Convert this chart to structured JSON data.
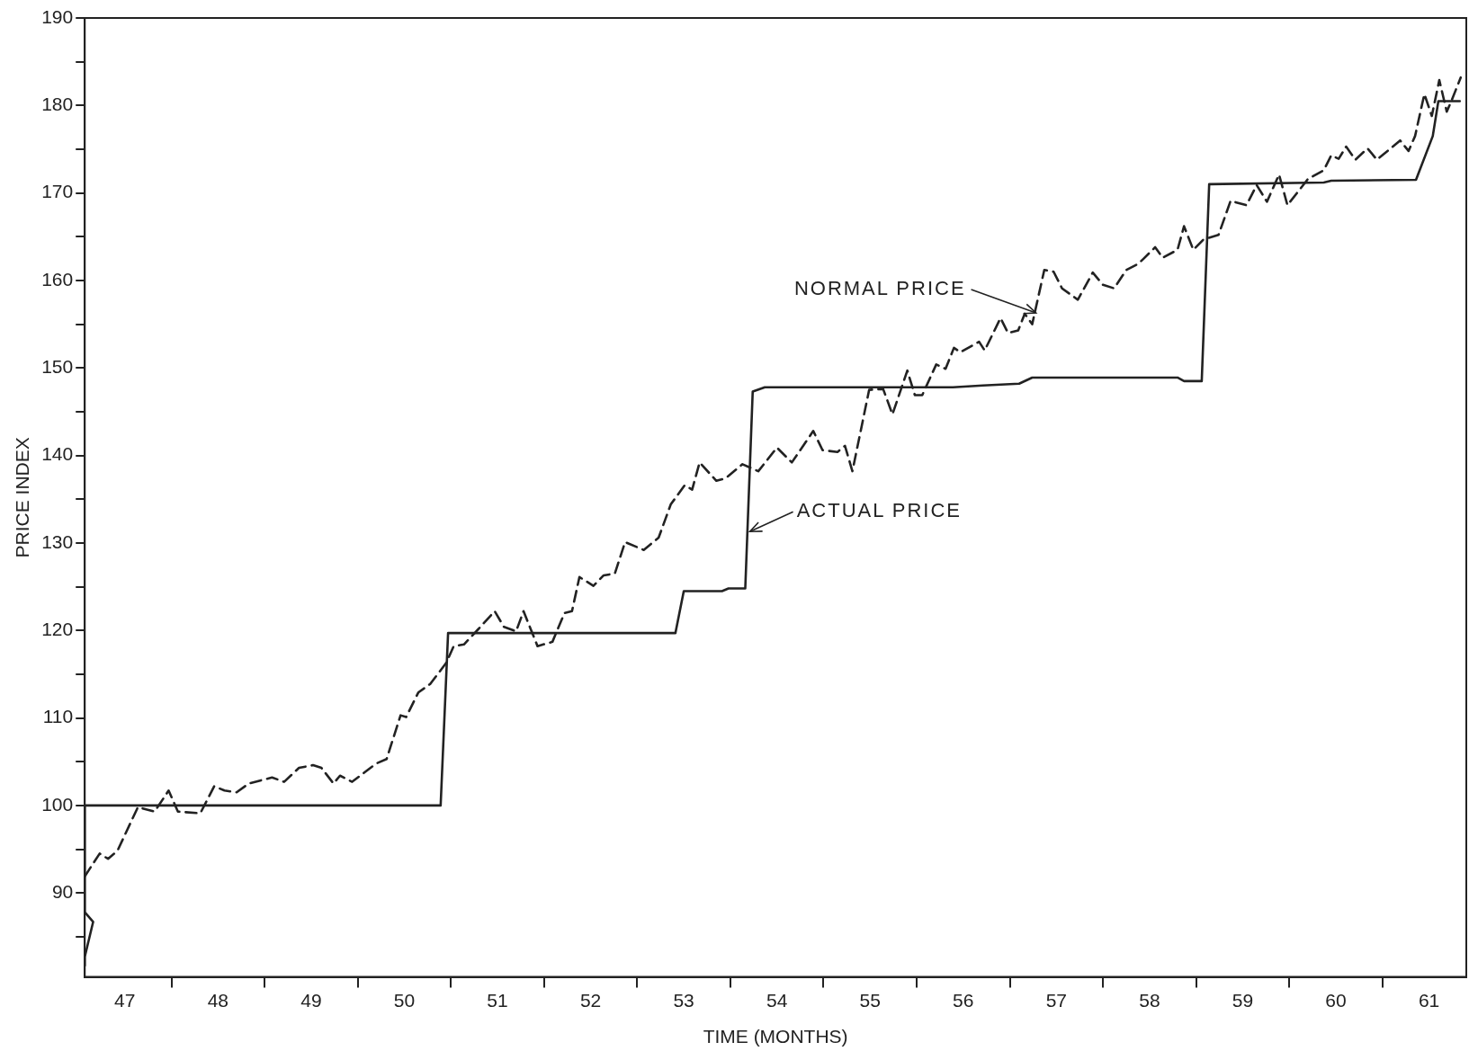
{
  "chart_data": {
    "type": "line",
    "xlabel": "TIME (MONTHS)",
    "ylabel": "PRICE INDEX",
    "xlim": [
      47.07,
      61.9
    ],
    "ylim": [
      80.4,
      190
    ],
    "xticks": [
      {
        "value": 47.5,
        "label": "47"
      },
      {
        "value": 48,
        "label": null
      },
      {
        "value": 48.5,
        "label": "48"
      },
      {
        "value": 49,
        "label": null
      },
      {
        "value": 49.5,
        "label": "49"
      },
      {
        "value": 50,
        "label": null
      },
      {
        "value": 50.5,
        "label": "50"
      },
      {
        "value": 51,
        "label": null
      },
      {
        "value": 51.5,
        "label": "51"
      },
      {
        "value": 52,
        "label": null
      },
      {
        "value": 52.5,
        "label": "52"
      },
      {
        "value": 53,
        "label": null
      },
      {
        "value": 53.5,
        "label": "53"
      },
      {
        "value": 54,
        "label": null
      },
      {
        "value": 54.5,
        "label": "54"
      },
      {
        "value": 55,
        "label": null
      },
      {
        "value": 55.5,
        "label": "55"
      },
      {
        "value": 56,
        "label": null
      },
      {
        "value": 56.5,
        "label": "56"
      },
      {
        "value": 57,
        "label": null
      },
      {
        "value": 57.5,
        "label": "57"
      },
      {
        "value": 58,
        "label": null
      },
      {
        "value": 58.5,
        "label": "58"
      },
      {
        "value": 59,
        "label": null
      },
      {
        "value": 59.5,
        "label": "59"
      },
      {
        "value": 60,
        "label": null
      },
      {
        "value": 60.5,
        "label": "60"
      },
      {
        "value": 61,
        "label": null
      },
      {
        "value": 61.5,
        "label": "61"
      }
    ],
    "yticks": [
      {
        "value": 85,
        "label": null
      },
      90,
      {
        "value": 95,
        "label": null
      },
      100,
      {
        "value": 105,
        "label": null
      },
      110,
      {
        "value": 115,
        "label": null
      },
      120,
      {
        "value": 125,
        "label": null
      },
      130,
      {
        "value": 135,
        "label": null
      },
      140,
      {
        "value": 145,
        "label": null
      },
      150,
      {
        "value": 155,
        "label": null
      },
      160,
      {
        "value": 165,
        "label": null
      },
      170,
      {
        "value": 175,
        "label": null
      },
      180,
      {
        "value": 185,
        "label": null
      },
      190
    ],
    "marker": "none",
    "annotations": [
      {
        "text": "NORMAL PRICE",
        "x": 57.28,
        "y": 156.3
      },
      {
        "text": "ACTUAL PRICE",
        "x": 54.21,
        "y": 131.3
      }
    ],
    "series": [
      {
        "color": "#222222",
        "line_style": "dashed",
        "x": [
          47.07,
          47.23,
          47.32,
          47.42,
          47.64,
          47.82,
          47.97,
          48.07,
          48.31,
          48.46,
          48.57,
          48.7,
          48.83,
          49.08,
          49.21,
          49.37,
          49.52,
          49.61,
          49.74,
          49.81,
          49.94,
          50.2,
          50.31,
          50.46,
          50.52,
          50.65,
          50.78,
          50.95,
          51.03,
          51.14,
          51.29,
          51.47,
          51.57,
          51.7,
          51.78,
          51.93,
          52.09,
          52.22,
          52.3,
          52.38,
          52.53,
          52.64,
          52.76,
          52.87,
          53.07,
          53.23,
          53.36,
          53.51,
          53.59,
          53.67,
          53.85,
          53.95,
          54.13,
          54.3,
          54.5,
          54.66,
          54.89,
          54.99,
          55.15,
          55.23,
          55.31,
          55.49,
          55.64,
          55.74,
          55.9,
          55.98,
          56.06,
          56.21,
          56.31,
          56.4,
          56.47,
          56.67,
          56.73,
          56.9,
          56.98,
          57.09,
          57.16,
          57.24,
          57.37,
          57.47,
          57.56,
          57.73,
          57.89,
          58.0,
          58.12,
          58.25,
          58.38,
          58.56,
          58.64,
          58.8,
          58.87,
          58.97,
          59.08,
          59.24,
          59.37,
          59.54,
          59.65,
          59.76,
          59.89,
          59.98,
          60.2,
          60.37,
          60.45,
          60.53,
          60.61,
          60.71,
          60.84,
          60.94,
          61.19,
          61.28,
          61.35,
          61.45,
          61.53,
          61.61,
          61.69,
          61.74,
          61.84
        ],
        "values": [
          91.9,
          94.5,
          93.9,
          94.8,
          99.8,
          99.3,
          101.7,
          99.3,
          99.1,
          102.2,
          101.7,
          101.5,
          102.5,
          103.2,
          102.7,
          104.3,
          104.6,
          104.3,
          102.5,
          103.4,
          102.7,
          104.8,
          105.3,
          110.3,
          110.1,
          112.9,
          113.9,
          116.3,
          118.2,
          118.4,
          120.1,
          122.2,
          120.4,
          119.9,
          122.2,
          118.2,
          118.7,
          122.0,
          122.2,
          126.1,
          125.1,
          126.3,
          126.5,
          130.1,
          129.2,
          130.6,
          134.4,
          136.6,
          136.1,
          139.2,
          137.1,
          137.4,
          139.0,
          138.2,
          140.9,
          139.2,
          142.8,
          140.6,
          140.4,
          141.1,
          138.2,
          147.5,
          147.6,
          144.7,
          149.7,
          146.9,
          146.9,
          150.4,
          149.9,
          152.3,
          151.8,
          153.0,
          152.0,
          155.7,
          154.0,
          154.3,
          156.2,
          155.0,
          161.2,
          161.0,
          159.1,
          157.8,
          160.9,
          159.5,
          159.1,
          161.2,
          161.9,
          163.8,
          162.6,
          163.5,
          166.2,
          163.5,
          164.7,
          165.2,
          169.1,
          168.6,
          170.9,
          169.0,
          172.1,
          168.6,
          171.6,
          172.6,
          174.3,
          173.9,
          175.3,
          173.8,
          175.1,
          173.8,
          176.0,
          174.8,
          176.5,
          181.3,
          178.8,
          182.9,
          179.3,
          180.5,
          183.2
        ]
      },
      {
        "color": "#222222",
        "line_style": "solid",
        "x": [
          47.07,
          47.07,
          47.16,
          47.07,
          47.07,
          50.89,
          50.97,
          53.41,
          53.5,
          53.91,
          53.98,
          54.16,
          54.24,
          54.37,
          56.39,
          56.71,
          57.1,
          57.24,
          58.8,
          58.87,
          59.06,
          59.14,
          60.37,
          60.45,
          61.36,
          61.54,
          61.6,
          61.83
        ],
        "values": [
          81.7,
          82.7,
          86.7,
          87.8,
          100,
          100,
          119.7,
          119.7,
          124.5,
          124.5,
          124.8,
          124.8,
          147.3,
          147.8,
          147.8,
          148.0,
          148.2,
          148.9,
          148.9,
          148.5,
          148.5,
          171.0,
          171.2,
          171.4,
          171.5,
          176.5,
          180.5,
          180.5
        ]
      }
    ]
  }
}
